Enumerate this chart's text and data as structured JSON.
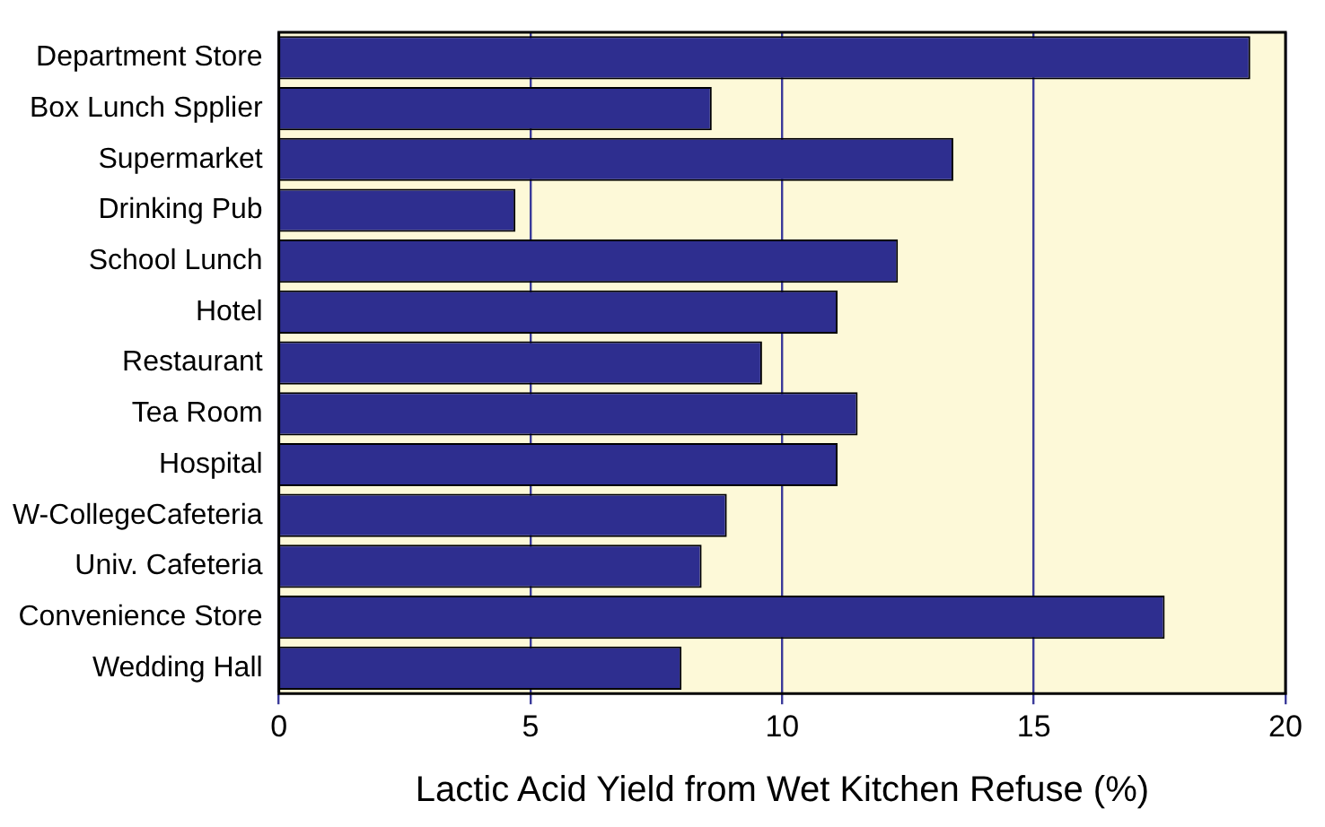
{
  "chart_data": {
    "type": "bar",
    "orientation": "horizontal",
    "xlabel": "Lactic Acid Yield from Wet Kitchen Refuse (%)",
    "categories": [
      "Department Store",
      "Box Lunch Spplier",
      "Supermarket",
      "Drinking Pub",
      "School Lunch",
      "Hotel",
      "Restaurant",
      "Tea Room",
      "Hospital",
      "W-CollegeCafeteria",
      "Univ. Cafeteria",
      "Convenience Store",
      "Wedding Hall"
    ],
    "values": [
      19.3,
      8.6,
      13.4,
      4.7,
      12.3,
      11.1,
      9.6,
      11.5,
      11.1,
      8.9,
      8.4,
      17.6,
      8.0
    ],
    "color": "#2e2e8f",
    "xlim": [
      0,
      20
    ],
    "xticks": [
      0,
      5,
      10,
      15,
      20
    ],
    "grid": "x"
  }
}
